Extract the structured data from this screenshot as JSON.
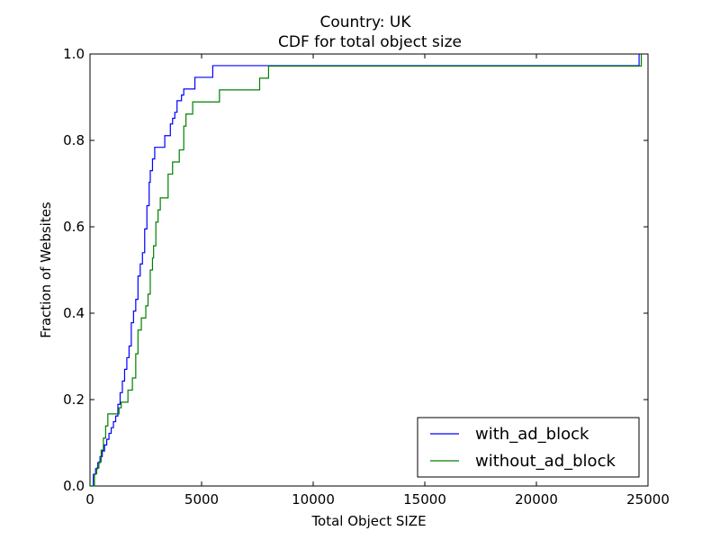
{
  "chart_data": {
    "type": "line",
    "title": "Country: UK",
    "subtitle": "CDF for total object size",
    "xlabel": "Total Object SIZE",
    "ylabel": "Fraction of Websites",
    "xlim": [
      0,
      25000
    ],
    "ylim": [
      0,
      1.0
    ],
    "xticks": [
      0,
      5000,
      10000,
      15000,
      20000,
      25000
    ],
    "yticks": [
      0.0,
      0.2,
      0.4,
      0.6,
      0.8,
      1.0
    ],
    "xtick_labels": [
      "0",
      "5000",
      "10000",
      "15000",
      "20000",
      "25000"
    ],
    "ytick_labels": [
      "0.0",
      "0.2",
      "0.4",
      "0.6",
      "0.8",
      "1.0"
    ],
    "grid": false,
    "legend_position": "lower-right",
    "step": true,
    "series": [
      {
        "name": "with_ad_block",
        "color": "#0000ff",
        "x": [
          0,
          150,
          250,
          350,
          450,
          550,
          650,
          750,
          850,
          950,
          1050,
          1150,
          1250,
          1350,
          1450,
          1550,
          1650,
          1750,
          1850,
          1950,
          2050,
          2150,
          2250,
          2350,
          2450,
          2550,
          2650,
          2700,
          2800,
          2900,
          3100,
          3350,
          3600,
          3700,
          3800,
          3900,
          4100,
          4200,
          4400,
          4700,
          5100,
          5500,
          8000,
          24500,
          24600
        ],
        "y": [
          0,
          0.027,
          0.04,
          0.054,
          0.068,
          0.081,
          0.095,
          0.108,
          0.122,
          0.135,
          0.149,
          0.162,
          0.189,
          0.216,
          0.243,
          0.27,
          0.297,
          0.324,
          0.378,
          0.405,
          0.432,
          0.486,
          0.514,
          0.54,
          0.595,
          0.649,
          0.703,
          0.73,
          0.757,
          0.784,
          0.784,
          0.811,
          0.838,
          0.851,
          0.865,
          0.892,
          0.905,
          0.919,
          0.919,
          0.946,
          0.946,
          0.973,
          0.973,
          0.973,
          1.0
        ]
      },
      {
        "name": "without_ad_block",
        "color": "#008000",
        "x": [
          0,
          200,
          300,
          400,
          500,
          600,
          700,
          800,
          900,
          1100,
          1300,
          1400,
          1500,
          1700,
          1900,
          2050,
          2150,
          2300,
          2500,
          2600,
          2700,
          2800,
          2850,
          2950,
          3050,
          3150,
          3300,
          3500,
          3700,
          4000,
          4200,
          4300,
          4600,
          5800,
          7600,
          7900,
          8000,
          24500,
          24700
        ],
        "y": [
          0,
          0.028,
          0.042,
          0.056,
          0.083,
          0.111,
          0.139,
          0.167,
          0.167,
          0.167,
          0.181,
          0.194,
          0.194,
          0.222,
          0.25,
          0.306,
          0.361,
          0.389,
          0.417,
          0.444,
          0.5,
          0.528,
          0.556,
          0.611,
          0.639,
          0.667,
          0.667,
          0.722,
          0.75,
          0.778,
          0.833,
          0.861,
          0.889,
          0.917,
          0.944,
          0.944,
          0.972,
          0.972,
          1.0
        ]
      }
    ]
  }
}
